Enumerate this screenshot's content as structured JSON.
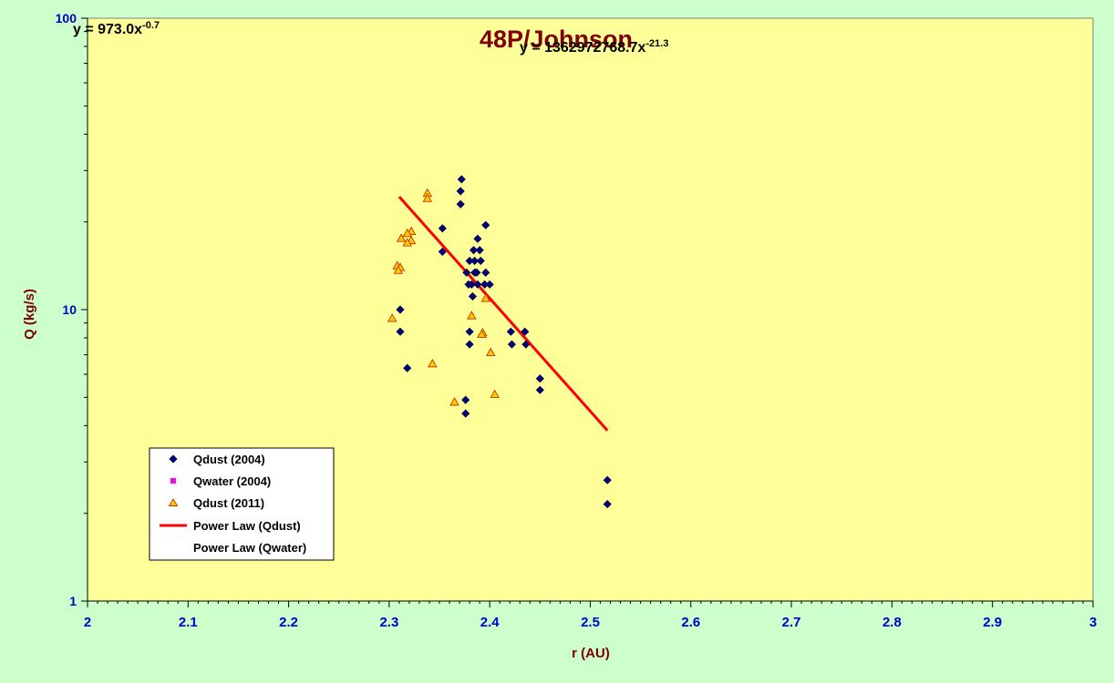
{
  "chart_data": {
    "type": "scatter",
    "title": "48P/Johnson",
    "xlabel": "r (AU)",
    "ylabel": "Q (kg/s)",
    "xlim": [
      2,
      3
    ],
    "ylim": [
      1,
      100
    ],
    "yscale": "log",
    "x_ticks": [
      "2",
      "2.1",
      "2.2",
      "2.3",
      "2.4",
      "2.5",
      "2.6",
      "2.7",
      "2.8",
      "2.9",
      "3"
    ],
    "y_ticks": [
      "1",
      "10",
      "100"
    ],
    "grid": false,
    "legend_position": "bottom-left",
    "equations": [
      {
        "base": "y = 973.0x",
        "exponent": "-0.7"
      },
      {
        "base": "y = 1362972768.7x",
        "exponent": "-21.3"
      }
    ],
    "series": [
      {
        "name": "Qdust (2004)",
        "marker": "diamond",
        "color": "#000080",
        "points": [
          [
            2.372,
            28.0
          ],
          [
            2.371,
            25.5
          ],
          [
            2.371,
            23.0
          ],
          [
            2.353,
            19.0
          ],
          [
            2.396,
            19.5
          ],
          [
            2.353,
            15.8
          ],
          [
            2.388,
            17.5
          ],
          [
            2.384,
            16.0
          ],
          [
            2.39,
            16.0
          ],
          [
            2.38,
            14.7
          ],
          [
            2.385,
            14.7
          ],
          [
            2.391,
            14.7
          ],
          [
            2.377,
            13.4
          ],
          [
            2.385,
            13.4
          ],
          [
            2.387,
            13.4
          ],
          [
            2.396,
            13.4
          ],
          [
            2.379,
            12.2
          ],
          [
            2.382,
            12.2
          ],
          [
            2.388,
            12.2
          ],
          [
            2.395,
            12.2
          ],
          [
            2.4,
            12.2
          ],
          [
            2.383,
            11.1
          ],
          [
            2.311,
            10.0
          ],
          [
            2.311,
            8.4
          ],
          [
            2.38,
            8.4
          ],
          [
            2.421,
            8.4
          ],
          [
            2.435,
            8.4
          ],
          [
            2.38,
            7.6
          ],
          [
            2.422,
            7.6
          ],
          [
            2.436,
            7.6
          ],
          [
            2.318,
            6.3
          ],
          [
            2.45,
            5.8
          ],
          [
            2.45,
            5.3
          ],
          [
            2.376,
            4.9
          ],
          [
            2.376,
            4.4
          ],
          [
            2.517,
            2.6
          ],
          [
            2.517,
            2.15
          ]
        ]
      },
      {
        "name": "Qwater (2004)",
        "marker": "square",
        "color": "#ff00ff",
        "points": []
      },
      {
        "name": "Qdust (2011)",
        "marker": "triangle",
        "color": "#ffcc00",
        "points": [
          [
            2.338,
            25.0
          ],
          [
            2.338,
            24.0
          ],
          [
            2.322,
            18.5
          ],
          [
            2.318,
            18.2
          ],
          [
            2.312,
            17.5
          ],
          [
            2.322,
            17.2
          ],
          [
            2.318,
            16.9
          ],
          [
            2.308,
            14.1
          ],
          [
            2.311,
            13.9
          ],
          [
            2.309,
            13.6
          ],
          [
            2.396,
            10.9
          ],
          [
            2.303,
            9.3
          ],
          [
            2.382,
            9.5
          ],
          [
            2.393,
            8.3
          ],
          [
            2.392,
            8.2
          ],
          [
            2.401,
            7.1
          ],
          [
            2.343,
            6.5
          ],
          [
            2.405,
            5.1
          ],
          [
            2.365,
            4.8
          ]
        ]
      },
      {
        "name": "Power Law (Qdust)",
        "type": "line",
        "color": "#ff0000",
        "points": [
          [
            2.31,
            24.4
          ],
          [
            2.517,
            3.85
          ]
        ]
      },
      {
        "name": "Power Law (Qwater)",
        "type": "line",
        "color": "#ffffff",
        "points": []
      }
    ]
  }
}
